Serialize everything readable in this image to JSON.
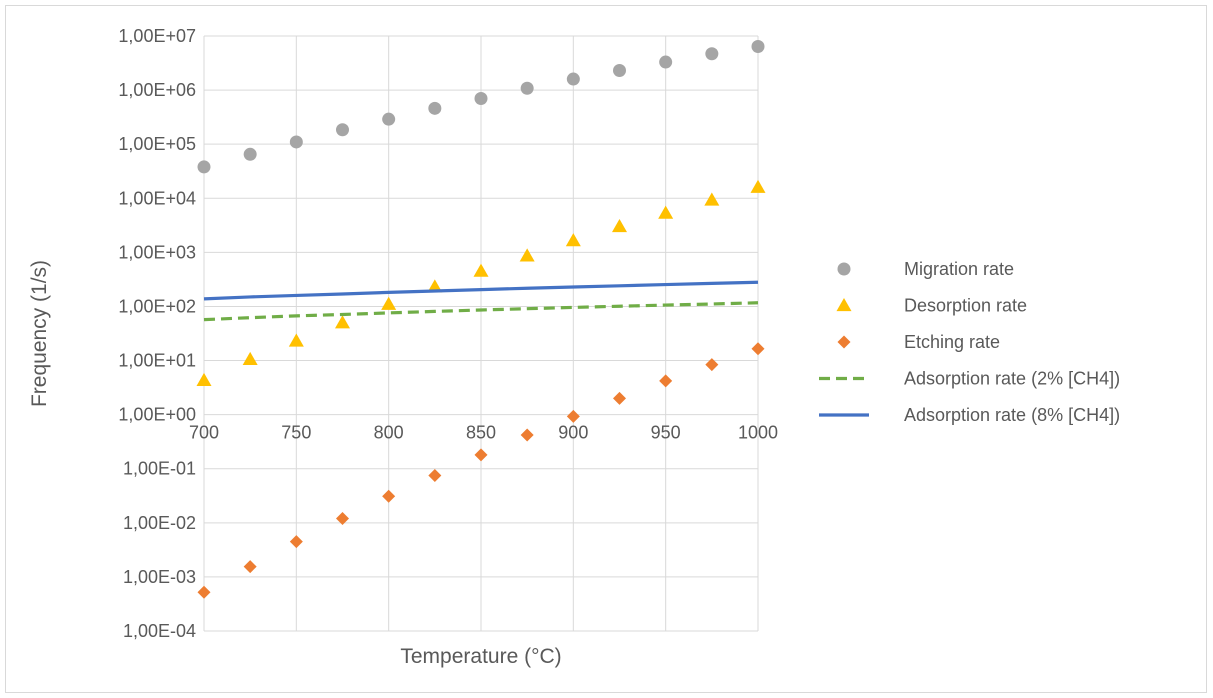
{
  "chart_data": {
    "type": "scatter",
    "title": "",
    "xlabel": "Temperature (°C)",
    "ylabel": "Frequency (1/s)",
    "xlim": [
      700,
      1000
    ],
    "ylim_log10": [
      -4,
      7
    ],
    "y_scale": "log",
    "grid": true,
    "legend_position": "right",
    "x_ticks": [
      "700",
      "750",
      "800",
      "850",
      "900",
      "950",
      "1000"
    ],
    "y_ticks": [
      "1,00E+07",
      "1,00E+06",
      "1,00E+05",
      "1,00E+04",
      "1,00E+03",
      "1,00E+02",
      "1,00E+01",
      "1,00E+00",
      "1,00E-01",
      "1,00E-02",
      "1,00E-03",
      "1,00E-04"
    ],
    "x": [
      700,
      725,
      750,
      775,
      800,
      825,
      850,
      875,
      900,
      925,
      950,
      975,
      1000
    ],
    "series": [
      {
        "name": "Migration rate",
        "marker": "circle",
        "color": "#a5a5a5",
        "values": [
          38000,
          65000,
          110000,
          185000,
          290000,
          460000,
          700000,
          1080000,
          1600000,
          2300000,
          3300000,
          4700000,
          6400000
        ]
      },
      {
        "name": "Desorption rate",
        "marker": "triangle",
        "color": "#ffc000",
        "values": [
          4.3,
          10.5,
          23,
          50,
          110,
          230,
          450,
          860,
          1650,
          3000,
          5300,
          9300,
          16000
        ]
      },
      {
        "name": "Etching rate",
        "marker": "diamond",
        "color": "#ed7d31",
        "values": [
          0.00052,
          0.00155,
          0.0045,
          0.012,
          0.031,
          0.075,
          0.18,
          0.42,
          0.93,
          2.0,
          4.2,
          8.4,
          16.5
        ]
      },
      {
        "name": "Adsorption rate (2% [CH4])",
        "marker": "dashed-line",
        "color": "#70ad47",
        "values": [
          57,
          62,
          67,
          71,
          76,
          81,
          86,
          91,
          96,
          101,
          106,
          111,
          117
        ]
      },
      {
        "name": "Adsorption rate (8% [CH4])",
        "marker": "solid-line",
        "color": "#4472c4",
        "values": [
          138,
          150,
          160,
          170,
          182,
          193,
          205,
          217,
          229,
          241,
          254,
          267,
          280
        ]
      }
    ]
  }
}
